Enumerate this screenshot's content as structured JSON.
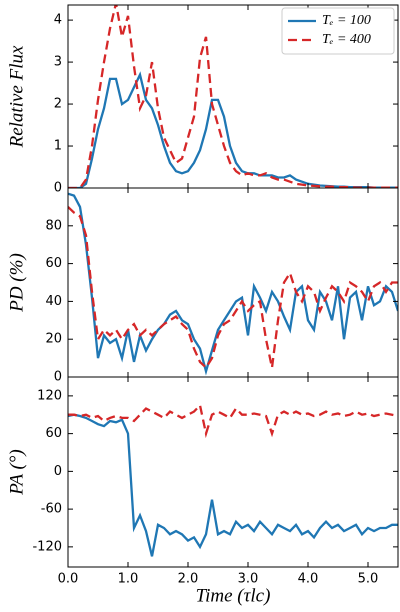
{
  "chart_data": [
    {
      "type": "line",
      "ylabel": "Relative Flux",
      "xlim": [
        0,
        5.5
      ],
      "ylim": [
        0,
        4.36
      ],
      "yticks": [
        0,
        1,
        2,
        3,
        4
      ],
      "legend": "upper right",
      "x": [
        0,
        0.1,
        0.2,
        0.3,
        0.4,
        0.5,
        0.6,
        0.7,
        0.8,
        0.9,
        1,
        1.1,
        1.2,
        1.3,
        1.4,
        1.5,
        1.6,
        1.7,
        1.8,
        1.9,
        2,
        2.1,
        2.2,
        2.3,
        2.4,
        2.5,
        2.6,
        2.7,
        2.8,
        2.9,
        3,
        3.1,
        3.2,
        3.3,
        3.4,
        3.5,
        3.6,
        3.7,
        3.8,
        3.9,
        4,
        4.1,
        4.2,
        4.3,
        4.4,
        4.5,
        4.6,
        4.7,
        4.8,
        4.9,
        5,
        5.1,
        5.2,
        5.3,
        5.4,
        5.5
      ],
      "series": [
        {
          "name": "Tₑ = 100",
          "color": "#1f77b4",
          "linestyle": "solid",
          "values": [
            0,
            0,
            0,
            0.1,
            0.7,
            1.4,
            1.9,
            2.6,
            2.6,
            2.0,
            2.1,
            2.4,
            2.7,
            2.1,
            1.9,
            1.5,
            1.0,
            0.6,
            0.4,
            0.35,
            0.4,
            0.6,
            0.9,
            1.4,
            2.1,
            2.1,
            1.7,
            1.0,
            0.6,
            0.4,
            0.35,
            0.35,
            0.3,
            0.3,
            0.3,
            0.25,
            0.25,
            0.3,
            0.2,
            0.15,
            0.1,
            0.08,
            0.06,
            0.05,
            0.04,
            0.03,
            0.03,
            0.02,
            0.02,
            0.02,
            0.02,
            0.01,
            0.01,
            0.01,
            0.01,
            0.01
          ]
        },
        {
          "name": "Tₑ = 400",
          "color": "#d62728",
          "linestyle": "dashed",
          "values": [
            0,
            0,
            0,
            0.2,
            1.0,
            2.1,
            3.0,
            3.8,
            4.4,
            3.6,
            4.1,
            2.9,
            1.9,
            2.2,
            3.0,
            1.9,
            1.2,
            0.9,
            0.6,
            0.7,
            1.2,
            1.7,
            3.1,
            3.6,
            2.0,
            1.5,
            1.0,
            0.6,
            0.4,
            0.3,
            0.35,
            0.3,
            0.3,
            0.35,
            0.25,
            0.2,
            0.2,
            0.15,
            0.1,
            0.08,
            0.06,
            0.05,
            0.04,
            0.03,
            0.03,
            0.02,
            0.02,
            0.02,
            0.01,
            0.01,
            0.01,
            0.01,
            0.01,
            0.01,
            0.01,
            0.01
          ]
        }
      ]
    },
    {
      "type": "line",
      "ylabel": "PD (%)",
      "xlim": [
        0,
        5.5
      ],
      "ylim": [
        0,
        100
      ],
      "yticks": [
        0,
        20,
        40,
        60,
        80
      ],
      "x": [
        0,
        0.1,
        0.2,
        0.3,
        0.4,
        0.5,
        0.6,
        0.7,
        0.8,
        0.9,
        1,
        1.1,
        1.2,
        1.3,
        1.4,
        1.5,
        1.6,
        1.7,
        1.8,
        1.9,
        2,
        2.1,
        2.2,
        2.3,
        2.4,
        2.5,
        2.6,
        2.7,
        2.8,
        2.9,
        3,
        3.1,
        3.2,
        3.3,
        3.4,
        3.5,
        3.6,
        3.7,
        3.8,
        3.9,
        4,
        4.1,
        4.2,
        4.3,
        4.4,
        4.5,
        4.6,
        4.7,
        4.8,
        4.9,
        5,
        5.1,
        5.2,
        5.3,
        5.4,
        5.5
      ],
      "series": [
        {
          "color": "#1f77b4",
          "linestyle": "solid",
          "values": [
            97,
            96,
            90,
            70,
            42,
            10,
            22,
            18,
            20,
            10,
            25,
            8,
            22,
            14,
            20,
            25,
            28,
            33,
            35,
            30,
            28,
            20,
            15,
            3,
            14,
            25,
            30,
            35,
            40,
            42,
            22,
            48,
            42,
            35,
            45,
            40,
            32,
            25,
            45,
            48,
            30,
            25,
            45,
            40,
            30,
            48,
            20,
            42,
            45,
            30,
            48,
            38,
            40,
            48,
            45,
            35
          ]
        },
        {
          "color": "#d62728",
          "linestyle": "dashed",
          "values": [
            90,
            87,
            85,
            75,
            45,
            20,
            25,
            22,
            25,
            20,
            25,
            28,
            22,
            25,
            22,
            25,
            28,
            30,
            32,
            28,
            25,
            15,
            8,
            5,
            10,
            22,
            28,
            30,
            35,
            40,
            35,
            38,
            40,
            20,
            5,
            30,
            50,
            55,
            45,
            40,
            48,
            45,
            35,
            42,
            48,
            45,
            40,
            50,
            48,
            45,
            40,
            48,
            50,
            45,
            50,
            50
          ]
        }
      ]
    },
    {
      "type": "line",
      "ylabel": "PA (°)",
      "xlabel": "Time (τlc)",
      "xlim": [
        0,
        5.5
      ],
      "ylim": [
        -152,
        150
      ],
      "yticks": [
        -120,
        -60,
        0,
        60,
        120
      ],
      "xticks": [
        {
          "value": 0,
          "label": "0.0"
        },
        {
          "value": 1,
          "label": "1.0"
        },
        {
          "value": 2,
          "label": "2.0"
        },
        {
          "value": 3,
          "label": "3.0"
        },
        {
          "value": 4,
          "label": "4.0"
        },
        {
          "value": 5,
          "label": "5.0"
        }
      ],
      "x": [
        0,
        0.1,
        0.2,
        0.3,
        0.4,
        0.5,
        0.6,
        0.7,
        0.8,
        0.9,
        1,
        1.1,
        1.2,
        1.3,
        1.4,
        1.5,
        1.6,
        1.7,
        1.8,
        1.9,
        2,
        2.1,
        2.2,
        2.3,
        2.4,
        2.5,
        2.6,
        2.7,
        2.8,
        2.9,
        3,
        3.1,
        3.2,
        3.3,
        3.4,
        3.5,
        3.6,
        3.7,
        3.8,
        3.9,
        4,
        4.1,
        4.2,
        4.3,
        4.4,
        4.5,
        4.6,
        4.7,
        4.8,
        4.9,
        5,
        5.1,
        5.2,
        5.3,
        5.4,
        5.5
      ],
      "series": [
        {
          "color": "#1f77b4",
          "linestyle": "solid",
          "values": [
            88,
            90,
            88,
            85,
            80,
            75,
            72,
            80,
            78,
            82,
            60,
            -90,
            -70,
            -95,
            -135,
            -85,
            -90,
            -100,
            -95,
            -100,
            -110,
            -105,
            -120,
            -100,
            -45,
            -100,
            -95,
            -100,
            -80,
            -90,
            -85,
            -95,
            -80,
            -90,
            -100,
            -85,
            -90,
            -95,
            -85,
            -100,
            -95,
            -105,
            -90,
            -80,
            -90,
            -85,
            -95,
            -90,
            -85,
            -100,
            -90,
            -95,
            -90,
            -90,
            -85,
            -85
          ]
        },
        {
          "color": "#d62728",
          "linestyle": "dashed",
          "values": [
            90,
            90,
            88,
            90,
            85,
            88,
            80,
            85,
            88,
            85,
            85,
            80,
            90,
            100,
            95,
            90,
            85,
            95,
            90,
            85,
            90,
            95,
            105,
            60,
            90,
            95,
            90,
            85,
            100,
            90,
            90,
            92,
            90,
            88,
            60,
            90,
            95,
            90,
            95,
            90,
            92,
            88,
            90,
            95,
            90,
            92,
            88,
            90,
            95,
            90,
            92,
            88,
            90,
            92,
            90,
            88
          ]
        }
      ]
    }
  ]
}
